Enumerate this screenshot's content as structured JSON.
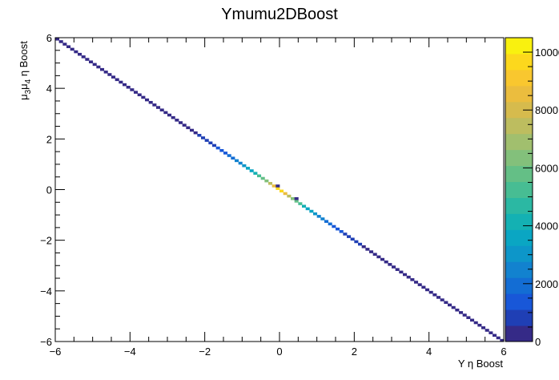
{
  "chart_data": {
    "type": "heatmap",
    "title": "Ymumu2DBoost",
    "xlabel": "Υ  η Boost",
    "ylabel": "μ",
    "ylabel_sub1": "3",
    "ylabel_mid": "μ",
    "ylabel_sub2": "4",
    "ylabel_tail": " η Boost",
    "xlim": [
      -6,
      6
    ],
    "ylim": [
      -6,
      6
    ],
    "x_ticks": [
      "−6",
      "−4",
      "−2",
      "0",
      "2",
      "4",
      "6"
    ],
    "y_ticks": [
      "−6",
      "−4",
      "−2",
      "0",
      "2",
      "4",
      "6"
    ],
    "x_tick_values": [
      -6,
      -4,
      -2,
      0,
      2,
      4,
      6
    ],
    "y_tick_values": [
      -6,
      -4,
      -2,
      0,
      2,
      4,
      6
    ],
    "bins": 120,
    "zlim": [
      0,
      10500
    ],
    "z_ticks": [
      "0",
      "2000",
      "4000",
      "6000",
      "8000",
      "10000"
    ],
    "z_tick_values": [
      0,
      2000,
      4000,
      6000,
      8000,
      10000
    ],
    "diagonal_peak": 10500,
    "diagonal_width": 0.75,
    "diagonal_floor": 500,
    "off_diagonal_cells": [
      {
        "x": -0.05,
        "y": 0.15,
        "value": 300
      },
      {
        "x": 0.45,
        "y": -0.35,
        "value": 300
      }
    ],
    "palette": [
      "#352a87",
      "#1f3fb5",
      "#1857d8",
      "#136dd4",
      "#1282cf",
      "#0d96c9",
      "#0aa6c3",
      "#14b1b3",
      "#2bb8a3",
      "#47bd93",
      "#64bf86",
      "#83c07b",
      "#a1bf6e",
      "#bdbd5f",
      "#d6bb4d",
      "#ebbd3e",
      "#f9c72f",
      "#fcd81d",
      "#f9f10f"
    ],
    "grid": false
  }
}
